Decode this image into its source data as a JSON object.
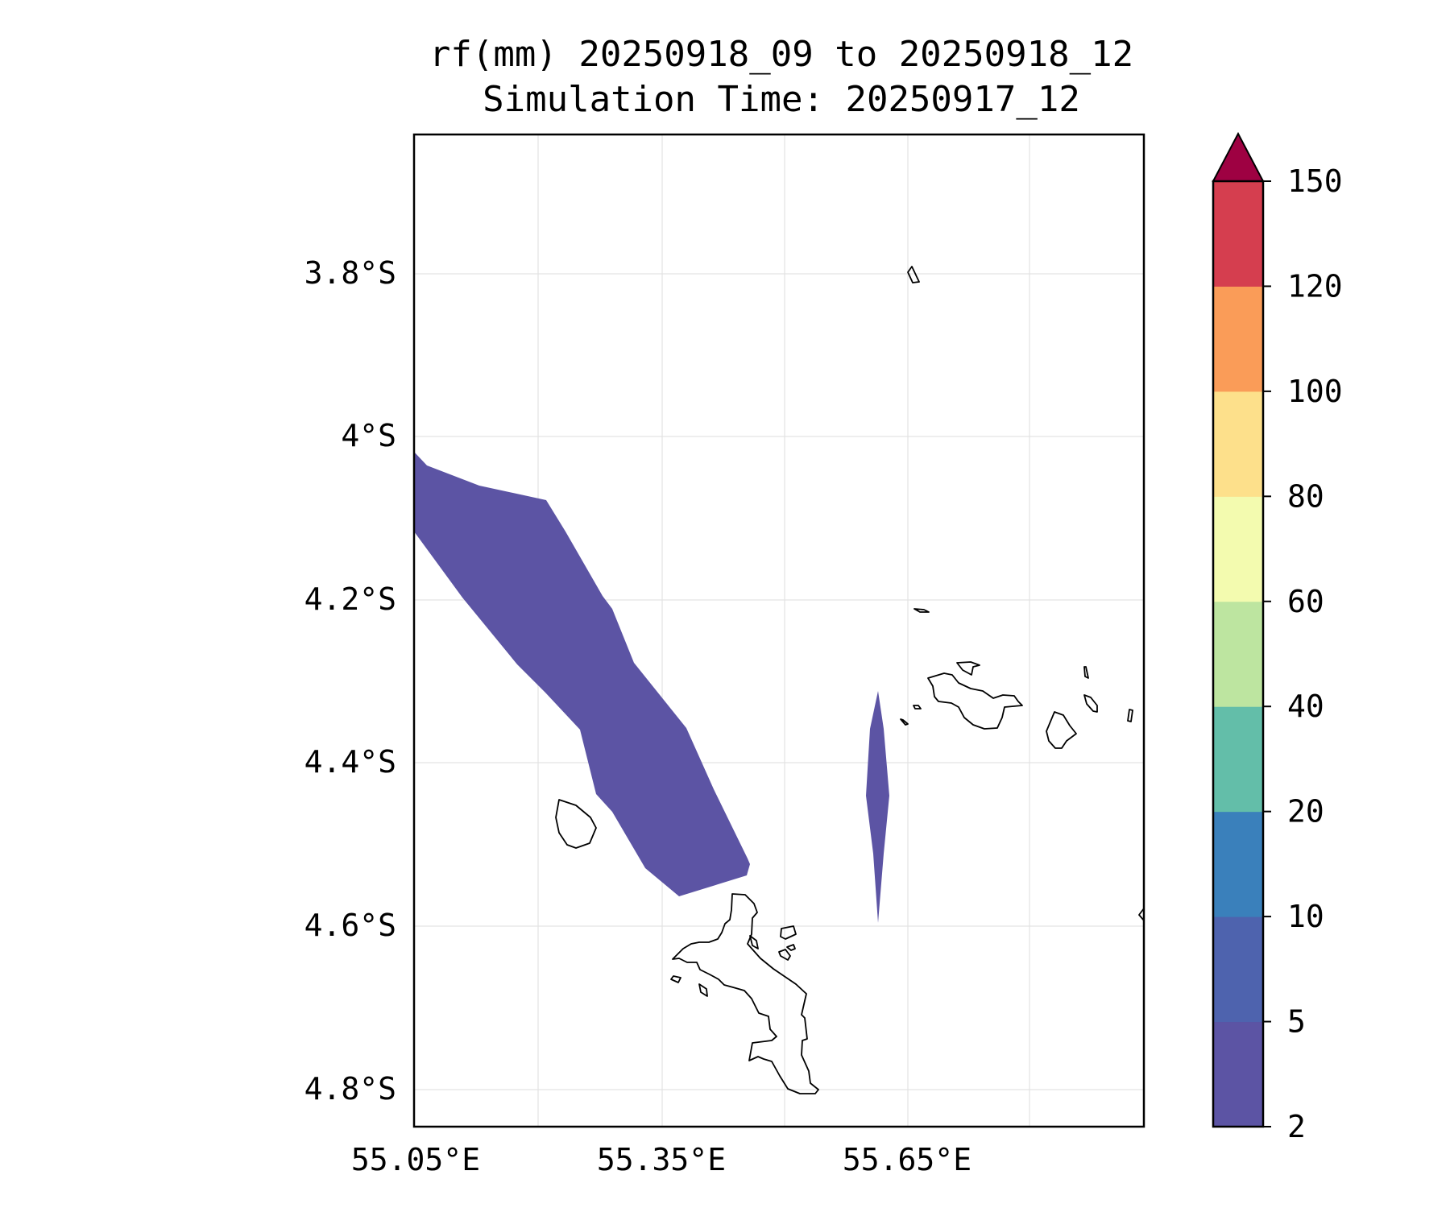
{
  "title": {
    "line1": "rf(mm) 20250918_09 to 20250918_12",
    "line2": "Simulation Time: 20250917_12"
  },
  "map": {
    "x_ticks": [
      {
        "value": 55.05,
        "label": "55.05°E"
      },
      {
        "value": 55.35,
        "label": "55.35°E"
      },
      {
        "value": 55.65,
        "label": "55.65°E"
      }
    ],
    "y_ticks": [
      {
        "value": -3.8,
        "label": "3.8°S"
      },
      {
        "value": -4.0,
        "label": "4°S"
      },
      {
        "value": -4.2,
        "label": "4.2°S"
      },
      {
        "value": -4.4,
        "label": "4.4°S"
      },
      {
        "value": -4.6,
        "label": "4.6°S"
      },
      {
        "value": -4.8,
        "label": "4.8°S"
      }
    ],
    "rain_fill_color": "#5c54a4"
  },
  "colorbar": {
    "extend": "max",
    "bins": [
      {
        "from": 2,
        "to": 5,
        "color": "#5c54a4"
      },
      {
        "from": 5,
        "to": 10,
        "color": "#4e63ae"
      },
      {
        "from": 10,
        "to": 20,
        "color": "#3a80bb"
      },
      {
        "from": 20,
        "to": 40,
        "color": "#63bea9"
      },
      {
        "from": 40,
        "to": 60,
        "color": "#bde5a0"
      },
      {
        "from": 60,
        "to": 80,
        "color": "#f3fbaf"
      },
      {
        "from": 80,
        "to": 100,
        "color": "#fde08b"
      },
      {
        "from": 100,
        "to": 120,
        "color": "#fa9c58"
      },
      {
        "from": 120,
        "to": 150,
        "color": "#d53e4f"
      }
    ],
    "over_color": "#9e0142",
    "tick_labels": [
      "2",
      "5",
      "10",
      "20",
      "40",
      "60",
      "80",
      "100",
      "120",
      "150"
    ]
  }
}
